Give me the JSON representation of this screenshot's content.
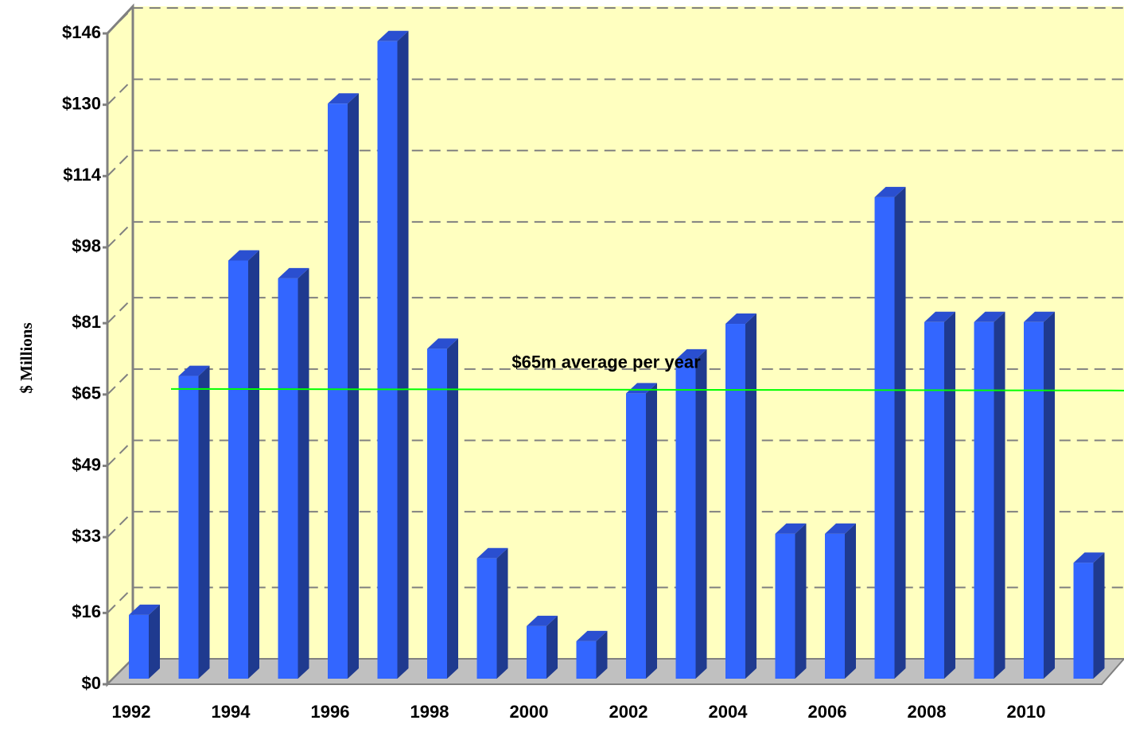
{
  "chart_data": {
    "type": "bar3d",
    "y_label": "$ Millions",
    "categories": [
      "1992",
      null,
      "1994",
      null,
      "1996",
      null,
      "1998",
      null,
      "2000",
      null,
      "2002",
      null,
      "2004",
      null,
      "2006",
      null,
      "2008",
      null,
      "2010",
      null
    ],
    "values": [
      14.3,
      67.9,
      93.8,
      89.8,
      129,
      143,
      74,
      27,
      11.8,
      8.4,
      64,
      71.6,
      79.6,
      32.5,
      32.5,
      108,
      80,
      80,
      80,
      26
    ],
    "color": "#3366ff",
    "ylim": [
      0,
      146
    ],
    "yticks": [
      {
        "value": 0,
        "label": "$0"
      },
      {
        "value": 16,
        "label": "$16"
      },
      {
        "value": 33,
        "label": "$33"
      },
      {
        "value": 49,
        "label": "$49"
      },
      {
        "value": 65,
        "label": "$65"
      },
      {
        "value": 81,
        "label": "$81"
      },
      {
        "value": 98,
        "label": "$98"
      },
      {
        "value": 114,
        "label": "$114"
      },
      {
        "value": 130,
        "label": "$130"
      },
      {
        "value": 146,
        "label": "$146"
      }
    ],
    "grid": true,
    "average": 65,
    "average_color": "#00ff00",
    "annotation": "$65m average per year"
  }
}
